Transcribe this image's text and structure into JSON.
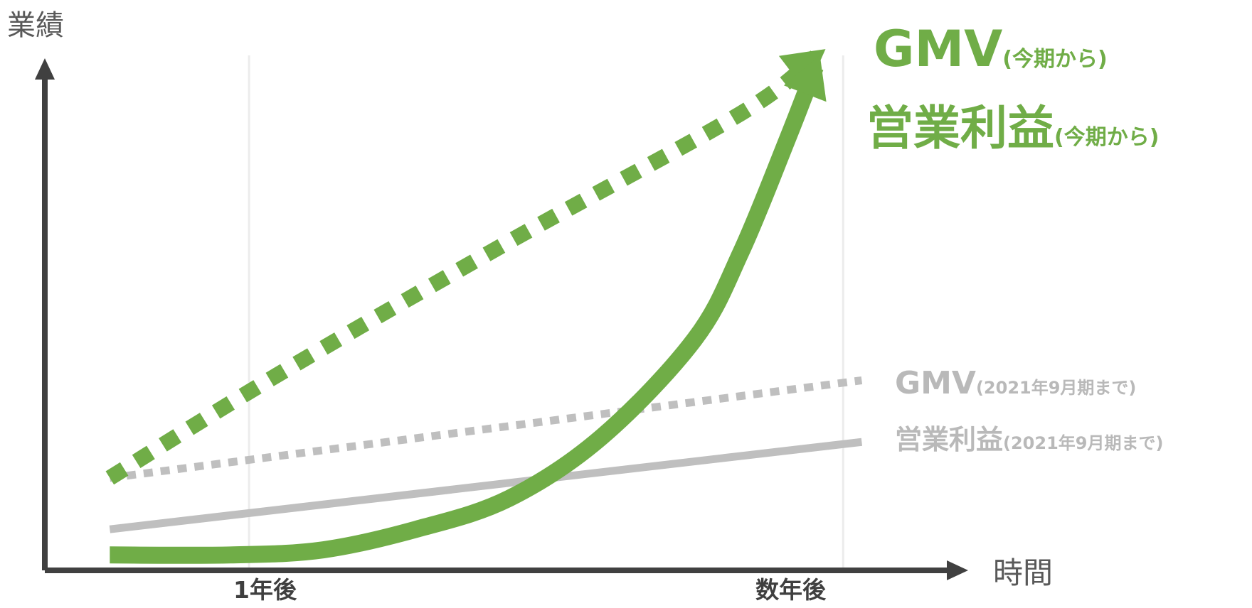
{
  "chart_data": {
    "type": "line",
    "ylabel": "業績",
    "xlabel": "時間",
    "x_ticks": [
      "1年後",
      "数年後"
    ],
    "grid": "vertical lines at tick positions",
    "series": [
      {
        "name": "GMV",
        "name_suffix": "(今期から)",
        "style": "dotted",
        "color": "#70ad47",
        "points": [
          [
            0.07,
            0.18
          ],
          [
            0.25,
            0.38
          ],
          [
            0.5,
            0.64
          ],
          [
            0.75,
            0.89
          ],
          [
            0.83,
            1.0
          ]
        ]
      },
      {
        "name": "営業利益",
        "name_suffix": "(今期から)",
        "style": "solid",
        "color": "#70ad47",
        "points": [
          [
            0.07,
            0.03
          ],
          [
            0.2,
            0.03
          ],
          [
            0.3,
            0.04
          ],
          [
            0.4,
            0.08
          ],
          [
            0.5,
            0.14
          ],
          [
            0.6,
            0.26
          ],
          [
            0.7,
            0.45
          ],
          [
            0.75,
            0.62
          ],
          [
            0.8,
            0.84
          ],
          [
            0.83,
            0.98
          ]
        ]
      },
      {
        "name": "GMV",
        "name_suffix": "(2021年9月期まで)",
        "style": "dotted",
        "color": "#bfbfbf",
        "points": [
          [
            0.07,
            0.18
          ],
          [
            0.88,
            0.37
          ]
        ]
      },
      {
        "name": "営業利益",
        "name_suffix": "(2021年9月期まで)",
        "style": "solid",
        "color": "#bfbfbf",
        "points": [
          [
            0.07,
            0.08
          ],
          [
            0.88,
            0.25
          ]
        ]
      }
    ]
  },
  "colors": {
    "accent": "#70ad47",
    "muted": "#bfbfbf",
    "axis": "#404040"
  }
}
